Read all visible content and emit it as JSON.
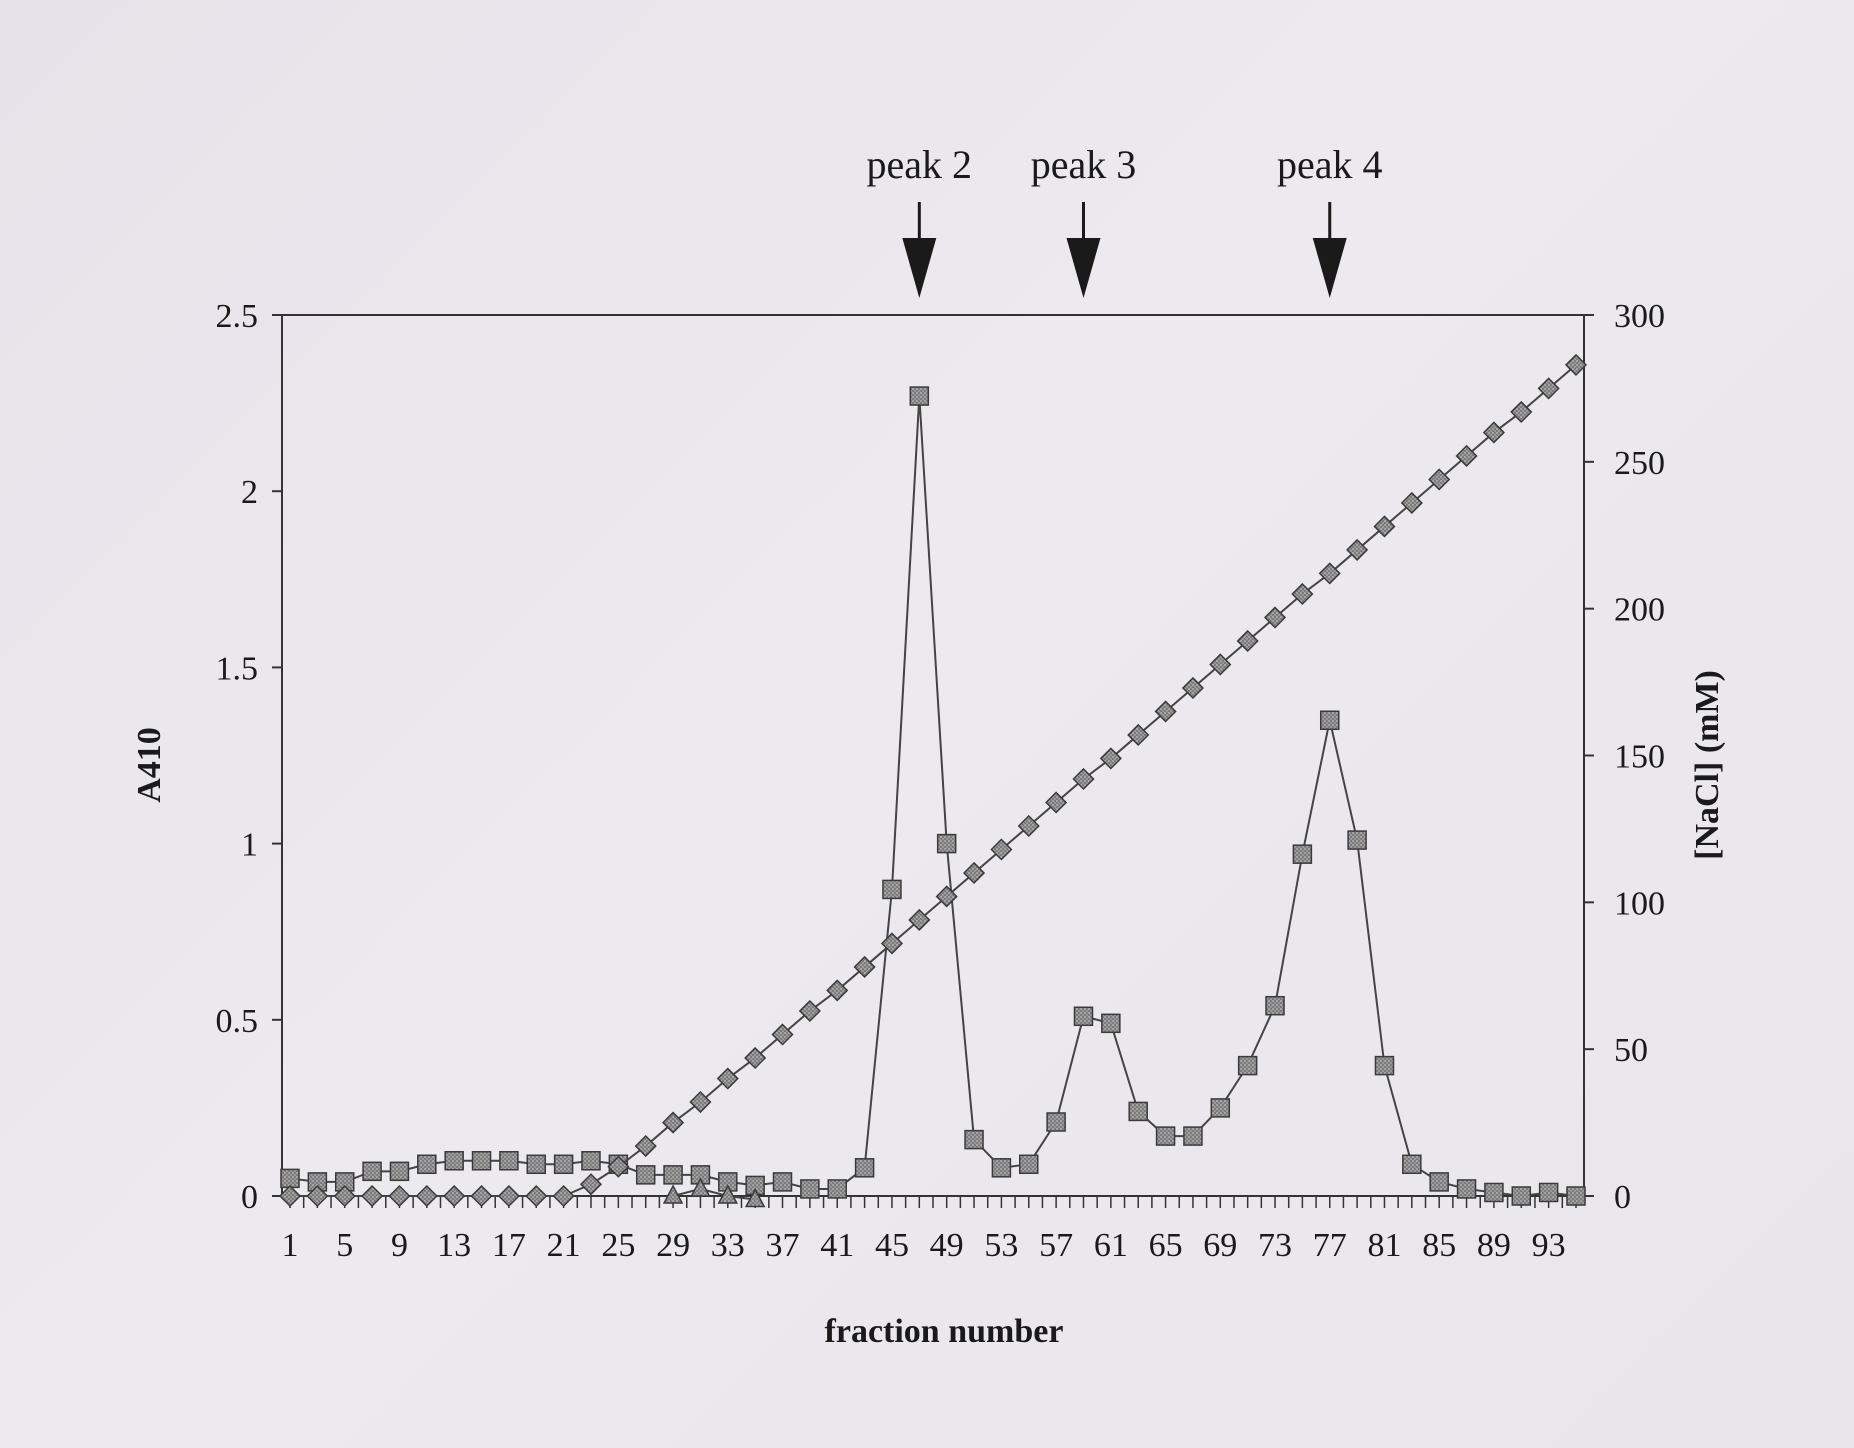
{
  "chart_data": {
    "type": "line",
    "xlabel": "fraction number",
    "ylabel_left": "A410",
    "ylabel_right": "[NaCl] (mM)",
    "ylim_left": [
      0,
      2.5
    ],
    "ylim_right": [
      0,
      300
    ],
    "xlim": [
      1,
      95
    ],
    "x_ticks": [
      "1",
      "5",
      "9",
      "13",
      "17",
      "21",
      "25",
      "29",
      "33",
      "37",
      "41",
      "45",
      "49",
      "53",
      "57",
      "61",
      "65",
      "69",
      "73",
      "77",
      "81",
      "85",
      "89",
      "93"
    ],
    "y_ticks_left": [
      "0",
      "0.5",
      "1",
      "1.5",
      "2",
      "2.5"
    ],
    "y_ticks_right": [
      "0",
      "50",
      "100",
      "150",
      "200",
      "250",
      "300"
    ],
    "grid": false,
    "annotations": [
      {
        "label": "peak 2",
        "x": 47
      },
      {
        "label": "peak 3",
        "x": 59
      },
      {
        "label": "peak 4",
        "x": 77
      }
    ],
    "series": [
      {
        "marker": "square",
        "axis": "left",
        "x": [
          1,
          3,
          5,
          7,
          9,
          11,
          13,
          15,
          17,
          19,
          21,
          23,
          25,
          27,
          29,
          31,
          33,
          35,
          37,
          39,
          41,
          43,
          45,
          47,
          49,
          51,
          53,
          55,
          57,
          59,
          61,
          63,
          65,
          67,
          69,
          71,
          73,
          75,
          77,
          79,
          81,
          83,
          85,
          87,
          89,
          91,
          93,
          95
        ],
        "values": [
          0.05,
          0.04,
          0.04,
          0.07,
          0.07,
          0.09,
          0.1,
          0.1,
          0.1,
          0.09,
          0.09,
          0.1,
          0.09,
          0.06,
          0.06,
          0.06,
          0.04,
          0.03,
          0.04,
          0.02,
          0.02,
          0.08,
          0.87,
          2.27,
          1.0,
          0.16,
          0.08,
          0.09,
          0.21,
          0.51,
          0.49,
          0.24,
          0.17,
          0.17,
          0.25,
          0.37,
          0.54,
          0.97,
          1.35,
          1.01,
          0.37,
          0.09,
          0.04,
          0.02,
          0.01,
          0.0,
          0.01,
          0.0
        ]
      },
      {
        "marker": "diamond",
        "axis": "right",
        "x": [
          1,
          3,
          5,
          7,
          9,
          11,
          13,
          15,
          17,
          19,
          21,
          23,
          25,
          27,
          29,
          31,
          33,
          35,
          37,
          39,
          41,
          43,
          45,
          47,
          49,
          51,
          53,
          55,
          57,
          59,
          61,
          63,
          65,
          67,
          69,
          71,
          73,
          75,
          77,
          79,
          81,
          83,
          85,
          87,
          89,
          91,
          93,
          95
        ],
        "values": [
          0,
          0,
          0,
          0,
          0,
          0,
          0,
          0,
          0,
          0,
          0,
          4,
          10,
          17,
          25,
          32,
          40,
          47,
          55,
          63,
          70,
          78,
          86,
          94,
          102,
          110,
          118,
          126,
          134,
          142,
          149,
          157,
          165,
          173,
          181,
          189,
          197,
          205,
          212,
          220,
          228,
          236,
          244,
          252,
          260,
          267,
          275,
          283
        ]
      },
      {
        "marker": "triangle",
        "axis": "left",
        "x": [
          29,
          31,
          33,
          35
        ],
        "values": [
          0.0,
          0.02,
          0.0,
          -0.01
        ]
      }
    ]
  }
}
